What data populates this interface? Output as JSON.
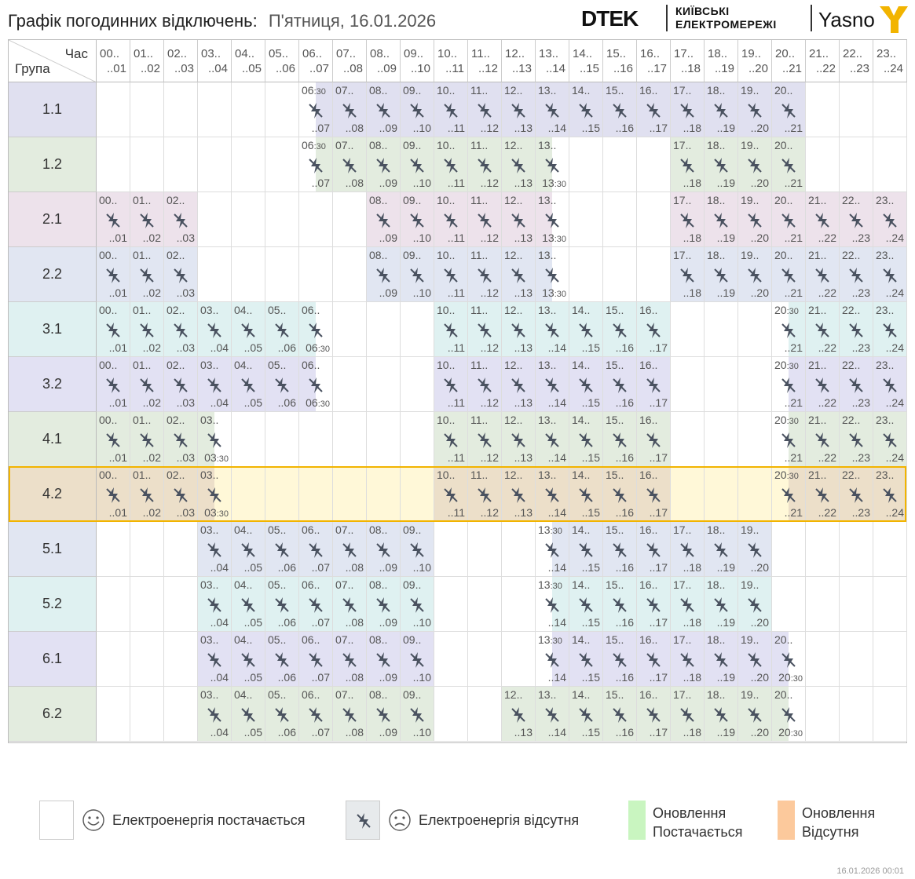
{
  "header": {
    "title": "Графік погодинних відключень:",
    "date": "П'ятниця, 16.01.2026",
    "brand_dtek": "DTEK",
    "brand_kyiv_line1": "КИЇВСЬКІ",
    "brand_kyiv_line2": "ЕЛЕКТРОМЕРЕЖІ",
    "brand_yasno": "Yasno"
  },
  "table": {
    "corner_hour": "Час",
    "corner_group": "Група",
    "hours": [
      {
        "s": "00..",
        "e": "..01"
      },
      {
        "s": "01..",
        "e": "..02"
      },
      {
        "s": "02..",
        "e": "..03"
      },
      {
        "s": "03..",
        "e": "..04"
      },
      {
        "s": "04..",
        "e": "..05"
      },
      {
        "s": "05..",
        "e": "..06"
      },
      {
        "s": "06..",
        "e": "..07"
      },
      {
        "s": "07..",
        "e": "..08"
      },
      {
        "s": "08..",
        "e": "..09"
      },
      {
        "s": "09..",
        "e": "..10"
      },
      {
        "s": "10..",
        "e": "..11"
      },
      {
        "s": "11..",
        "e": "..12"
      },
      {
        "s": "12..",
        "e": "..13"
      },
      {
        "s": "13..",
        "e": "..14"
      },
      {
        "s": "14..",
        "e": "..15"
      },
      {
        "s": "15..",
        "e": "..16"
      },
      {
        "s": "16..",
        "e": "..17"
      },
      {
        "s": "17..",
        "e": "..18"
      },
      {
        "s": "18..",
        "e": "..19"
      },
      {
        "s": "19..",
        "e": "..20"
      },
      {
        "s": "20..",
        "e": "..21"
      },
      {
        "s": "21..",
        "e": "..22"
      },
      {
        "s": "22..",
        "e": "..23"
      },
      {
        "s": "23..",
        "e": "..24"
      }
    ],
    "groups": [
      {
        "name": "1.1",
        "color": "#e0e0f0",
        "highlight": false,
        "outages": [
          [
            6.5,
            7
          ],
          [
            7,
            8
          ],
          [
            8,
            9
          ],
          [
            9,
            10
          ],
          [
            10,
            11
          ],
          [
            11,
            12
          ],
          [
            12,
            13
          ],
          [
            13,
            14
          ],
          [
            14,
            15
          ],
          [
            15,
            16
          ],
          [
            16,
            17
          ],
          [
            17,
            18
          ],
          [
            18,
            19
          ],
          [
            19,
            20
          ],
          [
            20,
            21
          ]
        ]
      },
      {
        "name": "1.2",
        "color": "#e3ecdf",
        "highlight": false,
        "outages": [
          [
            6.5,
            7
          ],
          [
            7,
            8
          ],
          [
            8,
            9
          ],
          [
            9,
            10
          ],
          [
            10,
            11
          ],
          [
            11,
            12
          ],
          [
            12,
            13
          ],
          [
            13,
            13.5
          ],
          [
            17,
            18
          ],
          [
            18,
            19
          ],
          [
            19,
            20
          ],
          [
            20,
            21
          ]
        ]
      },
      {
        "name": "2.1",
        "color": "#ede2eb",
        "highlight": false,
        "outages": [
          [
            0,
            1
          ],
          [
            1,
            2
          ],
          [
            2,
            3
          ],
          [
            8,
            9
          ],
          [
            9,
            10
          ],
          [
            10,
            11
          ],
          [
            11,
            12
          ],
          [
            12,
            13
          ],
          [
            13,
            13.5
          ],
          [
            17,
            18
          ],
          [
            18,
            19
          ],
          [
            19,
            20
          ],
          [
            20,
            21
          ],
          [
            21,
            22
          ],
          [
            22,
            23
          ],
          [
            23,
            24
          ]
        ]
      },
      {
        "name": "2.2",
        "color": "#e1e6f2",
        "highlight": false,
        "outages": [
          [
            0,
            1
          ],
          [
            1,
            2
          ],
          [
            2,
            3
          ],
          [
            8,
            9
          ],
          [
            9,
            10
          ],
          [
            10,
            11
          ],
          [
            11,
            12
          ],
          [
            12,
            13
          ],
          [
            13,
            13.5
          ],
          [
            17,
            18
          ],
          [
            18,
            19
          ],
          [
            19,
            20
          ],
          [
            20,
            21
          ],
          [
            21,
            22
          ],
          [
            22,
            23
          ],
          [
            23,
            24
          ]
        ]
      },
      {
        "name": "3.1",
        "color": "#dff1f1",
        "highlight": false,
        "outages": [
          [
            0,
            1
          ],
          [
            1,
            2
          ],
          [
            2,
            3
          ],
          [
            3,
            4
          ],
          [
            4,
            5
          ],
          [
            5,
            6
          ],
          [
            6,
            6.5
          ],
          [
            10,
            11
          ],
          [
            11,
            12
          ],
          [
            12,
            13
          ],
          [
            13,
            14
          ],
          [
            14,
            15
          ],
          [
            15,
            16
          ],
          [
            16,
            17
          ],
          [
            20.5,
            21
          ],
          [
            21,
            22
          ],
          [
            22,
            23
          ],
          [
            23,
            24
          ]
        ]
      },
      {
        "name": "3.2",
        "color": "#e2e1f3",
        "highlight": false,
        "outages": [
          [
            0,
            1
          ],
          [
            1,
            2
          ],
          [
            2,
            3
          ],
          [
            3,
            4
          ],
          [
            4,
            5
          ],
          [
            5,
            6
          ],
          [
            6,
            6.5
          ],
          [
            10,
            11
          ],
          [
            11,
            12
          ],
          [
            12,
            13
          ],
          [
            13,
            14
          ],
          [
            14,
            15
          ],
          [
            15,
            16
          ],
          [
            16,
            17
          ],
          [
            20.5,
            21
          ],
          [
            21,
            22
          ],
          [
            22,
            23
          ],
          [
            23,
            24
          ]
        ]
      },
      {
        "name": "4.1",
        "color": "#e3ecdf",
        "highlight": false,
        "outages": [
          [
            0,
            1
          ],
          [
            1,
            2
          ],
          [
            2,
            3
          ],
          [
            3,
            3.5
          ],
          [
            10,
            11
          ],
          [
            11,
            12
          ],
          [
            12,
            13
          ],
          [
            13,
            14
          ],
          [
            14,
            15
          ],
          [
            15,
            16
          ],
          [
            16,
            17
          ],
          [
            20.5,
            21
          ],
          [
            21,
            22
          ],
          [
            22,
            23
          ],
          [
            23,
            24
          ]
        ]
      },
      {
        "name": "4.2",
        "color": "#ecdfc9",
        "highlight": true,
        "outages": [
          [
            0,
            1
          ],
          [
            1,
            2
          ],
          [
            2,
            3
          ],
          [
            3,
            3.5
          ],
          [
            10,
            11
          ],
          [
            11,
            12
          ],
          [
            12,
            13
          ],
          [
            13,
            14
          ],
          [
            14,
            15
          ],
          [
            15,
            16
          ],
          [
            16,
            17
          ],
          [
            20.5,
            21
          ],
          [
            21,
            22
          ],
          [
            22,
            23
          ],
          [
            23,
            24
          ]
        ]
      },
      {
        "name": "5.1",
        "color": "#e1e6f2",
        "highlight": false,
        "outages": [
          [
            3,
            4
          ],
          [
            4,
            5
          ],
          [
            5,
            6
          ],
          [
            6,
            7
          ],
          [
            7,
            8
          ],
          [
            8,
            9
          ],
          [
            9,
            10
          ],
          [
            13.5,
            14
          ],
          [
            14,
            15
          ],
          [
            15,
            16
          ],
          [
            16,
            17
          ],
          [
            17,
            18
          ],
          [
            18,
            19
          ],
          [
            19,
            20
          ]
        ]
      },
      {
        "name": "5.2",
        "color": "#dff1f1",
        "highlight": false,
        "outages": [
          [
            3,
            4
          ],
          [
            4,
            5
          ],
          [
            5,
            6
          ],
          [
            6,
            7
          ],
          [
            7,
            8
          ],
          [
            8,
            9
          ],
          [
            9,
            10
          ],
          [
            13.5,
            14
          ],
          [
            14,
            15
          ],
          [
            15,
            16
          ],
          [
            16,
            17
          ],
          [
            17,
            18
          ],
          [
            18,
            19
          ],
          [
            19,
            20
          ]
        ]
      },
      {
        "name": "6.1",
        "color": "#e2e1f3",
        "highlight": false,
        "outages": [
          [
            3,
            4
          ],
          [
            4,
            5
          ],
          [
            5,
            6
          ],
          [
            6,
            7
          ],
          [
            7,
            8
          ],
          [
            8,
            9
          ],
          [
            9,
            10
          ],
          [
            13.5,
            14
          ],
          [
            14,
            15
          ],
          [
            15,
            16
          ],
          [
            16,
            17
          ],
          [
            17,
            18
          ],
          [
            18,
            19
          ],
          [
            19,
            20
          ],
          [
            20,
            20.5
          ]
        ]
      },
      {
        "name": "6.2",
        "color": "#e3ecdf",
        "highlight": false,
        "outages": [
          [
            3,
            4
          ],
          [
            4,
            5
          ],
          [
            5,
            6
          ],
          [
            6,
            7
          ],
          [
            7,
            8
          ],
          [
            8,
            9
          ],
          [
            9,
            10
          ],
          [
            12,
            13
          ],
          [
            13,
            14
          ],
          [
            14,
            15
          ],
          [
            15,
            16
          ],
          [
            16,
            17
          ],
          [
            17,
            18
          ],
          [
            18,
            19
          ],
          [
            19,
            20
          ],
          [
            20,
            20.5
          ]
        ]
      }
    ],
    "highlight_row_color": "#fff8d8",
    "highlight_border_color": "#f2b400"
  },
  "legend": {
    "supplied": "Електроенергія постачається",
    "absent": "Електроенергія відсутня",
    "update_supplied_line1": "Оновлення",
    "update_supplied_line2": "Постачається",
    "update_absent_line1": "Оновлення",
    "update_absent_line2": "Відсутня",
    "update_supplied_color": "#c9f5c0",
    "update_absent_color": "#fcc99c"
  },
  "footer": {
    "timestamp": "16.01.2026   00:01"
  }
}
